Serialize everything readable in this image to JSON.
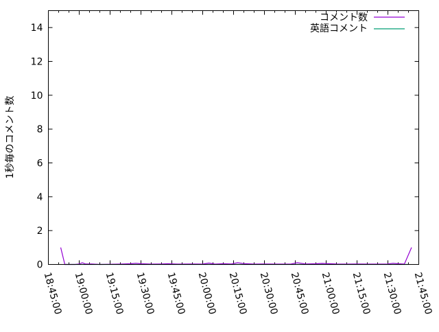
{
  "chart_data": {
    "type": "line",
    "title": "",
    "xlabel": "",
    "ylabel": "1秒毎のコメント数",
    "xlim": [
      "18:45:00",
      "21:45:00"
    ],
    "ylim": [
      0,
      15
    ],
    "grid": false,
    "legend_position": "top-right",
    "xticks": [
      "18:45:00",
      "19:00:00",
      "19:15:00",
      "19:30:00",
      "19:45:00",
      "20:00:00",
      "20:15:00",
      "20:30:00",
      "20:45:00",
      "21:00:00",
      "21:15:00",
      "21:30:00",
      "21:45:00"
    ],
    "yticks": [
      "0",
      "2",
      "4",
      "6",
      "8",
      "10",
      "12",
      "14"
    ],
    "series": [
      {
        "name": "コメント数",
        "color": "#9400d3",
        "x": [
          "18:51:00",
          "18:53:00",
          "18:58:00",
          "19:00:00",
          "19:01:30",
          "19:03:00",
          "19:06:00",
          "19:10:00",
          "19:20:00",
          "19:25:00",
          "19:27:30",
          "19:30:00",
          "19:35:00",
          "19:40:00",
          "19:43:00",
          "19:48:00",
          "19:55:00",
          "20:00:00",
          "20:03:00",
          "20:06:00",
          "20:10:00",
          "20:14:00",
          "20:17:00",
          "20:20:00",
          "20:25:00",
          "20:30:00",
          "20:35:00",
          "20:43:00",
          "20:46:00",
          "20:50:00",
          "20:55:00",
          "20:58:00",
          "21:05:00",
          "21:10:00",
          "21:15:00",
          "21:20:00",
          "21:25:00",
          "21:30:00",
          "21:32:30",
          "21:35:00",
          "21:38:00",
          "21:41:30"
        ],
        "values": [
          1,
          0,
          0,
          0.03,
          0.1,
          0.03,
          0.03,
          0,
          0.02,
          0.04,
          0.07,
          0.04,
          0.02,
          0.03,
          0.04,
          0.02,
          0.03,
          0.02,
          0.08,
          0.02,
          0.04,
          0.03,
          0.1,
          0.05,
          0.02,
          0.03,
          0.02,
          0.03,
          0.1,
          0.03,
          0.04,
          0.06,
          0.03,
          0.02,
          0.03,
          0.02,
          0.02,
          0.03,
          0.07,
          0.04,
          0.02,
          1
        ]
      },
      {
        "name": "英語コメント",
        "color": "#009e73",
        "x": [
          "18:53:00",
          "21:40:00"
        ],
        "values": [
          0,
          0
        ]
      }
    ]
  }
}
